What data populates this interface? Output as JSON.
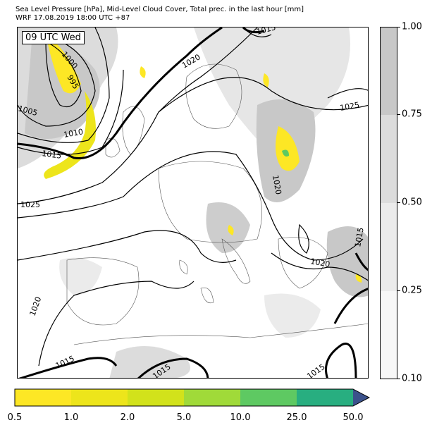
{
  "title": {
    "line1": "Sea Level Pressure [hPa], Mid-Level Cloud Cover, Total prec. in the last hour [mm]",
    "line2": "WRF 17.08.2019 18:00 UTC +87"
  },
  "map": {
    "time_label": "09 UTC Wed",
    "isobar_labels": [
      "1000",
      "995",
      "1005",
      "1010",
      "1015",
      "1020",
      "1025",
      "1015",
      "1025",
      "1020",
      "1020",
      "1020",
      "1015",
      "1015",
      "1015",
      "1015"
    ]
  },
  "cloud_colorbar": {
    "ticks": [
      "1.00",
      "0.75",
      "0.50",
      "0.25",
      "0.10"
    ],
    "colors": [
      "#c8c8c8",
      "#dcdcdc",
      "#ebebeb",
      "#f7f7f7"
    ]
  },
  "precip_colorbar": {
    "ticks": [
      "0.5",
      "1.0",
      "2.0",
      "5.0",
      "10.0",
      "25.0",
      "50.0"
    ],
    "colors": [
      "#fde725",
      "#ede51b",
      "#d2e21b",
      "#a0da39",
      "#5ec962",
      "#28ae80",
      "#3b528b",
      "#440154"
    ]
  }
}
